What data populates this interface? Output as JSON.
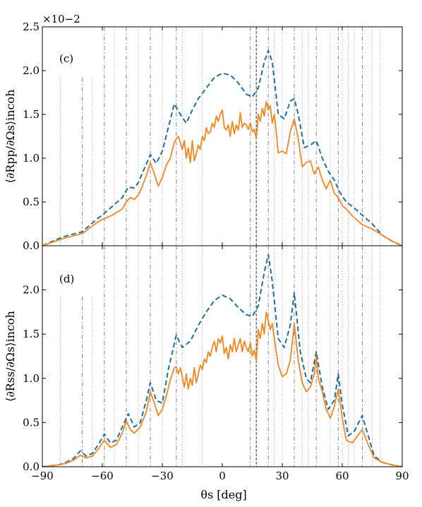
{
  "figure": {
    "xlabel": "θs [deg]",
    "exponent_label": "×10−2"
  },
  "colors": {
    "coherent_dashed": "#1f6e9c",
    "incoherent_solid": "#f4861f",
    "vline_dotted": "#9a9a9a",
    "vline_dashdot": "#777777",
    "vline_dashed": "#333333"
  },
  "vlines": {
    "dotted": [
      -81,
      -65,
      -54,
      -42,
      -30,
      -20,
      -10,
      26,
      30,
      40,
      43,
      54,
      60,
      63,
      66,
      75,
      79
    ],
    "dashdot": [
      -70,
      -59,
      -48,
      -36,
      -23,
      14,
      23,
      36,
      47,
      58,
      70
    ],
    "dashed": [
      17
    ]
  },
  "chart_data": [
    {
      "type": "line",
      "panel_label": "(c)",
      "ylabel": "⟨∂Rpp/∂Ωs⟩incoh",
      "xlim": [
        -90,
        90
      ],
      "ylim": [
        0,
        2.5
      ],
      "xticks": [
        -90,
        -60,
        -30,
        0,
        30,
        60,
        90
      ],
      "yticks": [
        0.0,
        0.5,
        1.0,
        1.5,
        2.0,
        2.5
      ],
      "ytick_labels": [
        "0.0",
        "0.5",
        "1.0",
        "1.5",
        "2.0",
        "2.5"
      ],
      "grid": false,
      "series": [
        {
          "style": "dashed",
          "x": [
            -90,
            -85,
            -80,
            -75,
            -70,
            -67,
            -63,
            -60,
            -55,
            -50,
            -47,
            -44,
            -42,
            -39,
            -36,
            -33,
            -30,
            -27,
            -24,
            -21,
            -18,
            -15,
            -12,
            -8,
            -4,
            0,
            4,
            8,
            12,
            15,
            18,
            21,
            23,
            25,
            28,
            31,
            34,
            36,
            38,
            41,
            44,
            47,
            50,
            53,
            56,
            59,
            62,
            65,
            70,
            75,
            80,
            85,
            90
          ],
          "y": [
            0.0,
            0.05,
            0.1,
            0.13,
            0.16,
            0.22,
            0.3,
            0.35,
            0.45,
            0.55,
            0.67,
            0.66,
            0.72,
            0.88,
            1.04,
            0.94,
            1.08,
            1.35,
            1.62,
            1.5,
            1.4,
            1.55,
            1.68,
            1.8,
            1.92,
            1.97,
            1.95,
            1.86,
            1.73,
            1.7,
            1.8,
            2.1,
            2.23,
            2.1,
            1.5,
            1.45,
            1.65,
            1.68,
            1.5,
            1.12,
            1.15,
            1.2,
            1.0,
            0.85,
            0.75,
            0.6,
            0.5,
            0.45,
            0.35,
            0.25,
            0.12,
            0.05,
            0.0
          ]
        },
        {
          "style": "solid",
          "x": [
            -90,
            -85,
            -80,
            -75,
            -70,
            -67,
            -63,
            -60,
            -55,
            -50,
            -48,
            -46,
            -44,
            -42,
            -40,
            -38,
            -36,
            -34,
            -32,
            -30,
            -28,
            -26,
            -24,
            -23,
            -22,
            -21,
            -20,
            -19,
            -18,
            -17,
            -16,
            -15,
            -14,
            -13,
            -12,
            -11,
            -10,
            -9,
            -8,
            -7,
            -6,
            -5,
            -4,
            -3,
            -2,
            -1,
            0,
            1,
            2,
            3,
            4,
            5,
            6,
            7,
            8,
            9,
            10,
            11,
            12,
            13,
            14,
            15,
            16,
            17,
            18,
            19,
            20,
            21,
            22,
            23,
            24,
            25,
            26,
            27,
            28,
            30,
            32,
            34,
            36,
            38,
            40,
            42,
            44,
            46,
            48,
            50,
            52,
            54,
            56,
            58,
            60,
            62,
            65,
            70,
            75,
            80,
            85,
            90
          ],
          "y": [
            0.0,
            0.04,
            0.08,
            0.11,
            0.14,
            0.19,
            0.26,
            0.3,
            0.35,
            0.42,
            0.5,
            0.55,
            0.53,
            0.58,
            0.68,
            0.8,
            0.95,
            0.82,
            0.68,
            0.78,
            0.92,
            1.0,
            1.18,
            1.22,
            1.25,
            1.18,
            1.1,
            1.2,
            1.0,
            1.12,
            0.95,
            1.2,
            0.97,
            1.05,
            1.15,
            1.1,
            1.25,
            1.2,
            1.35,
            1.28,
            1.3,
            1.4,
            1.35,
            1.48,
            1.42,
            1.5,
            1.55,
            1.35,
            1.32,
            1.38,
            1.25,
            1.42,
            1.28,
            1.38,
            1.32,
            1.52,
            1.35,
            1.4,
            1.38,
            1.33,
            1.4,
            1.3,
            1.33,
            1.22,
            1.5,
            1.42,
            1.57,
            1.48,
            1.65,
            1.55,
            1.6,
            1.4,
            1.5,
            1.3,
            1.06,
            1.08,
            1.05,
            1.3,
            1.45,
            1.22,
            0.9,
            0.95,
            0.97,
            0.82,
            0.9,
            0.75,
            0.65,
            0.75,
            0.6,
            0.55,
            0.46,
            0.42,
            0.34,
            0.24,
            0.19,
            0.12,
            0.05,
            0.0
          ]
        }
      ]
    },
    {
      "type": "line",
      "panel_label": "(d)",
      "ylabel": "⟨∂Rss/∂Ωs⟩incoh",
      "xlim": [
        -90,
        90
      ],
      "ylim": [
        0,
        2.5
      ],
      "xticks": [
        -90,
        -60,
        -30,
        0,
        30,
        60,
        90
      ],
      "xtick_labels": [
        "−90",
        "−60",
        "−30",
        "0",
        "30",
        "60",
        "90"
      ],
      "yticks": [
        0.0,
        0.5,
        1.0,
        1.5,
        2.0
      ],
      "ytick_labels": [
        "0.0",
        "0.5",
        "1.0",
        "1.5",
        "2.0"
      ],
      "grid": false,
      "series": [
        {
          "style": "dashed",
          "x": [
            -90,
            -82,
            -78,
            -74,
            -71,
            -68,
            -65,
            -62,
            -59,
            -56,
            -53,
            -50,
            -47,
            -44,
            -41,
            -38,
            -36,
            -33,
            -30,
            -27,
            -23,
            -20,
            -16,
            -12,
            -8,
            -4,
            0,
            4,
            8,
            12,
            15,
            18,
            21,
            23,
            25,
            28,
            31,
            34,
            36,
            39,
            42,
            44,
            47,
            50,
            53,
            56,
            58,
            60,
            63,
            66,
            70,
            73,
            76,
            80,
            85,
            90
          ],
          "y": [
            0.0,
            0.02,
            0.05,
            0.1,
            0.18,
            0.12,
            0.15,
            0.25,
            0.37,
            0.27,
            0.3,
            0.45,
            0.6,
            0.45,
            0.5,
            0.75,
            0.95,
            0.75,
            0.72,
            1.1,
            1.49,
            1.35,
            1.42,
            1.6,
            1.75,
            1.88,
            1.94,
            1.9,
            1.8,
            1.72,
            1.7,
            1.82,
            2.2,
            2.4,
            2.1,
            1.45,
            1.35,
            1.6,
            1.97,
            1.3,
            1.0,
            0.95,
            1.3,
            0.9,
            0.65,
            0.75,
            1.05,
            0.7,
            0.35,
            0.4,
            0.58,
            0.35,
            0.12,
            0.05,
            0.02,
            0.0
          ]
        },
        {
          "style": "solid",
          "x": [
            -90,
            -82,
            -78,
            -74,
            -71,
            -68,
            -65,
            -62,
            -59,
            -56,
            -53,
            -50,
            -48,
            -46,
            -44,
            -41,
            -38,
            -36,
            -34,
            -32,
            -30,
            -28,
            -26,
            -24,
            -23,
            -22,
            -21,
            -20,
            -19,
            -18,
            -17,
            -16,
            -15,
            -14,
            -13,
            -12,
            -11,
            -10,
            -9,
            -8,
            -7,
            -6,
            -5,
            -4,
            -3,
            -2,
            -1,
            0,
            1,
            2,
            3,
            4,
            5,
            6,
            7,
            8,
            9,
            10,
            11,
            12,
            13,
            14,
            15,
            16,
            17,
            18,
            19,
            20,
            21,
            22,
            23,
            24,
            25,
            26,
            27,
            28,
            30,
            32,
            34,
            36,
            38,
            40,
            42,
            44,
            46,
            47,
            48,
            50,
            52,
            54,
            56,
            58,
            60,
            62,
            65,
            70,
            73,
            76,
            80,
            85,
            90
          ],
          "y": [
            0.0,
            0.02,
            0.04,
            0.08,
            0.13,
            0.1,
            0.12,
            0.2,
            0.3,
            0.22,
            0.25,
            0.38,
            0.52,
            0.42,
            0.38,
            0.45,
            0.62,
            0.85,
            0.72,
            0.58,
            0.65,
            0.8,
            0.98,
            1.12,
            1.13,
            1.05,
            1.12,
            1.02,
            0.9,
            1.05,
            0.88,
            1.0,
            0.92,
            1.12,
            0.95,
            1.05,
            1.15,
            1.1,
            1.22,
            1.18,
            1.3,
            1.25,
            1.35,
            1.42,
            1.3,
            1.45,
            1.4,
            1.48,
            1.28,
            1.35,
            1.22,
            1.38,
            1.3,
            1.45,
            1.3,
            1.38,
            1.45,
            1.3,
            1.42,
            1.35,
            1.3,
            1.4,
            1.25,
            1.32,
            1.2,
            1.55,
            1.45,
            1.62,
            1.5,
            1.75,
            1.65,
            1.55,
            1.62,
            1.45,
            1.3,
            1.15,
            1.02,
            1.05,
            1.2,
            1.62,
            1.2,
            0.95,
            0.85,
            0.9,
            1.05,
            1.25,
            1.0,
            0.85,
            0.65,
            0.55,
            0.68,
            0.88,
            0.55,
            0.3,
            0.27,
            0.42,
            0.25,
            0.1,
            0.05,
            0.02,
            0.0
          ]
        }
      ]
    }
  ]
}
